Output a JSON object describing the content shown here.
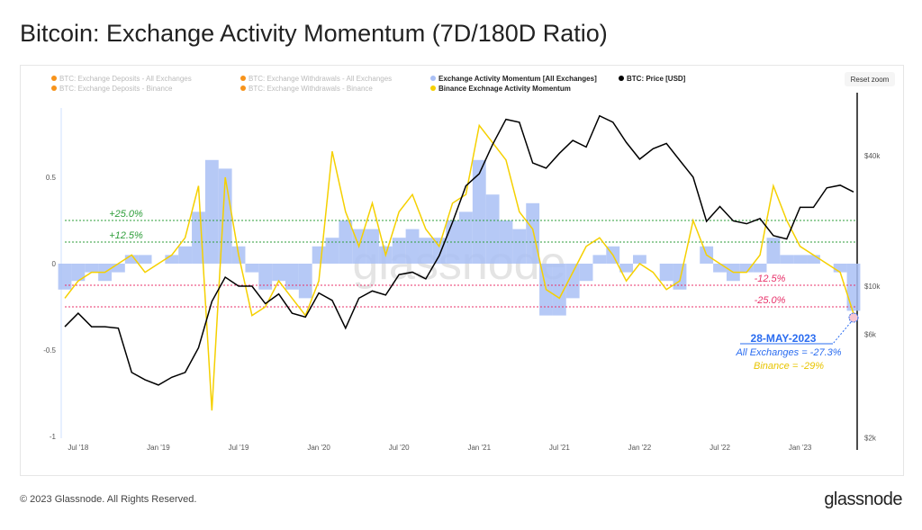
{
  "title": "Bitcoin: Exchange Activity Momentum (7D/180D Ratio)",
  "footer": "© 2023 Glassnode. All Rights Reserved.",
  "logo": "glassnode",
  "watermark": "glassnode",
  "reset_zoom": "Reset zoom",
  "colors": {
    "all": "#a9bff5",
    "binance": "#f5d000",
    "price": "#000000",
    "green": "#2e9e3a",
    "red": "#e8336b",
    "blue": "#2a6cf0"
  },
  "legend": [
    {
      "label": "BTC: Exchange Deposits - All Exchanges",
      "color": "#f7931a",
      "active": false
    },
    {
      "label": "BTC: Exchange Deposits - Binance",
      "color": "#f7931a",
      "active": false
    },
    {
      "label": "BTC: Exchange Withdrawals - All Exchanges",
      "color": "#f7931a",
      "active": false
    },
    {
      "label": "BTC: Exchange Withdrawals - Binance",
      "color": "#f7931a",
      "active": false
    },
    {
      "label": "Exchange Activity Momentum [All Exchanges]",
      "color": "#a9bff5",
      "active": true
    },
    {
      "label": "Binance Exchnage Activity Momentum",
      "color": "#f5d000",
      "active": true
    },
    {
      "label": "BTC: Price [USD]",
      "color": "#000000",
      "active": true
    }
  ],
  "annotation": {
    "date": "28-MAY-2023",
    "all": "All Exchanges = -27.3%",
    "binance": "Binance = -29%"
  },
  "chart_data": {
    "type": "line",
    "title": "Bitcoin: Exchange Activity Momentum (7D/180D Ratio)",
    "x_start": "2018-06",
    "x_step": "month",
    "x_ticks": [
      {
        "label": "Jul '18",
        "i": 1
      },
      {
        "label": "Jan '19",
        "i": 7
      },
      {
        "label": "Jul '19",
        "i": 13
      },
      {
        "label": "Jan '20",
        "i": 19
      },
      {
        "label": "Jul '20",
        "i": 25
      },
      {
        "label": "Jan '21",
        "i": 31
      },
      {
        "label": "Jul '21",
        "i": 37
      },
      {
        "label": "Jan '22",
        "i": 43
      },
      {
        "label": "Jul '22",
        "i": 49
      },
      {
        "label": "Jan '23",
        "i": 55
      }
    ],
    "y_left": {
      "ticks": [
        {
          "v": 0.5,
          "label": "0.5"
        },
        {
          "v": 0,
          "label": "0"
        },
        {
          "v": -0.5,
          "label": "-0.5"
        },
        {
          "v": -1,
          "label": "-1"
        }
      ],
      "range": [
        -1,
        0.99
      ]
    },
    "y_right": {
      "scale": "log",
      "ticks": [
        {
          "v": 40000,
          "label": "$40k"
        },
        {
          "v": 10000,
          "label": "$10k"
        },
        {
          "v": 6000,
          "label": "$6k"
        },
        {
          "v": 2000,
          "label": "$2k"
        }
      ],
      "range": [
        2000,
        80000
      ]
    },
    "thresholds": [
      {
        "v": 0.25,
        "label": "+25.0%",
        "color": "green"
      },
      {
        "v": 0.125,
        "label": "+12.5%",
        "color": "green"
      },
      {
        "v": -0.125,
        "label": "-12.5%",
        "color": "red"
      },
      {
        "v": -0.25,
        "label": "-25.0%",
        "color": "red"
      }
    ],
    "series": [
      {
        "name": "Exchange Activity Momentum [All Exchanges]",
        "type": "area",
        "values": [
          -0.15,
          -0.1,
          -0.05,
          -0.1,
          -0.05,
          0.05,
          0.05,
          0,
          0.05,
          0.1,
          0.3,
          0.6,
          0.55,
          0.1,
          -0.05,
          -0.15,
          -0.1,
          -0.15,
          -0.2,
          0.1,
          0.15,
          0.25,
          0.2,
          0.2,
          0.1,
          0.15,
          0.2,
          0.15,
          0.15,
          0.25,
          0.3,
          0.6,
          0.4,
          0.25,
          0.2,
          0.35,
          -0.3,
          -0.3,
          -0.2,
          -0.1,
          0.05,
          0.1,
          -0.05,
          0.05,
          0,
          -0.1,
          -0.15,
          0,
          0.1,
          -0.05,
          -0.1,
          -0.05,
          -0.05,
          0.15,
          0.05,
          0.05,
          0.05,
          0,
          -0.05,
          -0.273
        ]
      },
      {
        "name": "Binance Exchnage Activity Momentum",
        "type": "line",
        "values": [
          -0.2,
          -0.1,
          -0.05,
          -0.05,
          0,
          0.05,
          -0.05,
          0,
          0.05,
          0.15,
          0.45,
          -0.85,
          0.5,
          0.05,
          -0.3,
          -0.25,
          -0.1,
          -0.2,
          -0.3,
          -0.1,
          0.65,
          0.3,
          0.1,
          0.35,
          0.05,
          0.3,
          0.4,
          0.2,
          0.1,
          0.35,
          0.4,
          0.8,
          0.7,
          0.6,
          0.3,
          0.2,
          -0.15,
          -0.2,
          -0.05,
          0.1,
          0.15,
          0.05,
          -0.1,
          0,
          -0.05,
          -0.15,
          -0.1,
          0.25,
          0.05,
          0,
          -0.05,
          -0.05,
          0.05,
          0.45,
          0.25,
          0.1,
          0.05,
          0,
          -0.05,
          -0.29
        ]
      },
      {
        "name": "BTC: Price [USD]",
        "type": "line",
        "axis": "right",
        "values": [
          6500,
          7500,
          6500,
          6500,
          6400,
          4000,
          3700,
          3500,
          3800,
          4000,
          5200,
          8500,
          11000,
          10000,
          10000,
          8300,
          9200,
          7500,
          7200,
          9300,
          8600,
          6400,
          8800,
          9500,
          9100,
          11300,
          11600,
          10800,
          13800,
          19700,
          29000,
          33000,
          45000,
          58800,
          57000,
          37000,
          35000,
          41000,
          47000,
          43800,
          61000,
          57000,
          46000,
          38500,
          43000,
          45500,
          38000,
          31800,
          19900,
          23300,
          20000,
          19400,
          20500,
          17100,
          16500,
          23100,
          23100,
          28400,
          29200,
          27200
        ]
      }
    ]
  }
}
